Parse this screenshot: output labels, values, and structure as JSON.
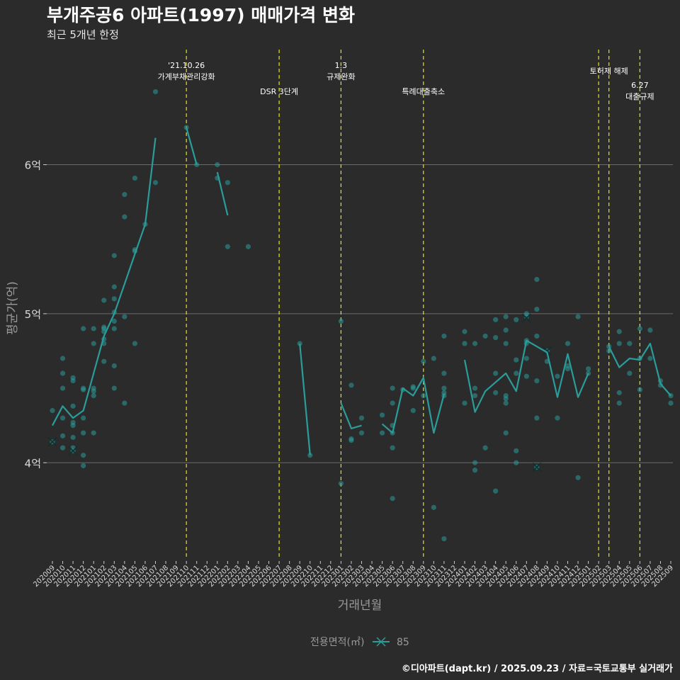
{
  "title": "부개주공6 아파트(1997) 매매가격 변화",
  "subtitle": "최근 5개년 한정",
  "credit": "©디아파트(dapt.kr) / 2025.09.23 / 자료=국토교통부 실거래가",
  "colors": {
    "background": "#2b2b2b",
    "series": "#2a9d9a",
    "event_line": "#e6e600",
    "grid": "#6b6b6b",
    "text": "#ffffff",
    "axis_text": "#9a9a9a"
  },
  "chart_data": {
    "type": "line",
    "xlabel": "거래년월",
    "ylabel": "평균가(억)",
    "ylim": [
      3.35,
      6.82
    ],
    "yticks": [
      {
        "value": 4,
        "label": "4억"
      },
      {
        "value": 5,
        "label": "5억"
      },
      {
        "value": 6,
        "label": "6억"
      }
    ],
    "grid": "horizontal",
    "legend": {
      "title": "전용면적(㎡)",
      "position": "bottom",
      "entries": [
        "85"
      ]
    },
    "x": [
      "202009",
      "202010",
      "202011",
      "202012",
      "202101",
      "202102",
      "202103",
      "202104",
      "202105",
      "202106",
      "202107",
      "202108",
      "202109",
      "202110",
      "202111",
      "202112",
      "202201",
      "202202",
      "202203",
      "202204",
      "202205",
      "202206",
      "202207",
      "202208",
      "202209",
      "202210",
      "202211",
      "202212",
      "202301",
      "202302",
      "202303",
      "202304",
      "202305",
      "202306",
      "202307",
      "202308",
      "202309",
      "202310",
      "202311",
      "202312",
      "202401",
      "202402",
      "202403",
      "202404",
      "202405",
      "202406",
      "202407",
      "202408",
      "202409",
      "202410",
      "202411",
      "202412",
      "202501",
      "202502",
      "202503",
      "202504",
      "202505",
      "202506",
      "202507",
      "202508",
      "202509"
    ],
    "series": [
      {
        "name": "85",
        "values": [
          4.25,
          4.38,
          4.3,
          4.35,
          4.6,
          4.85,
          5.0,
          5.2,
          5.4,
          5.6,
          6.18,
          null,
          null,
          6.25,
          6.0,
          null,
          5.95,
          5.66,
          null,
          null,
          null,
          null,
          null,
          null,
          4.8,
          4.05,
          null,
          null,
          4.4,
          4.23,
          4.25,
          null,
          4.26,
          4.2,
          4.5,
          4.45,
          4.57,
          4.2,
          4.46,
          null,
          4.69,
          4.34,
          4.48,
          4.54,
          4.6,
          4.48,
          4.82,
          4.78,
          4.74,
          4.44,
          4.73,
          4.44,
          4.6,
          null,
          4.78,
          4.64,
          4.7,
          4.69,
          4.8,
          4.53,
          4.45
        ],
        "points": [
          [
            0,
            4.35
          ],
          [
            0,
            4.14
          ],
          [
            1,
            4.1
          ],
          [
            1,
            4.5
          ],
          [
            1,
            4.6
          ],
          [
            1,
            4.7
          ],
          [
            1,
            4.18
          ],
          [
            1,
            4.3
          ],
          [
            2,
            4.25
          ],
          [
            2,
            4.1
          ],
          [
            2,
            4.17
          ],
          [
            2,
            4.08
          ],
          [
            2,
            4.27
          ],
          [
            2,
            4.38
          ],
          [
            2,
            4.55
          ],
          [
            2,
            4.57
          ],
          [
            3,
            4.9
          ],
          [
            3,
            4.5
          ],
          [
            3,
            4.49
          ],
          [
            3,
            4.3
          ],
          [
            3,
            4.2
          ],
          [
            3,
            4.05
          ],
          [
            3,
            3.98
          ],
          [
            4,
            4.45
          ],
          [
            4,
            4.48
          ],
          [
            4,
            4.5
          ],
          [
            4,
            4.9
          ],
          [
            4,
            4.8
          ],
          [
            4,
            4.2
          ],
          [
            5,
            4.8
          ],
          [
            5,
            4.83
          ],
          [
            5,
            4.88
          ],
          [
            5,
            4.91
          ],
          [
            5,
            4.9
          ],
          [
            5,
            5.09
          ],
          [
            5,
            4.68
          ],
          [
            6,
            4.65
          ],
          [
            6,
            4.5
          ],
          [
            6,
            4.9
          ],
          [
            6,
            4.95
          ],
          [
            6,
            5.01
          ],
          [
            6,
            5.1
          ],
          [
            6,
            5.18
          ],
          [
            6,
            5.39
          ],
          [
            7,
            5.8
          ],
          [
            7,
            5.65
          ],
          [
            7,
            4.98
          ],
          [
            7,
            4.4
          ],
          [
            8,
            5.91
          ],
          [
            8,
            5.43
          ],
          [
            8,
            5.42
          ],
          [
            8,
            4.8
          ],
          [
            9,
            5.6
          ],
          [
            10,
            6.49
          ],
          [
            10,
            5.88
          ],
          [
            13,
            6.25
          ],
          [
            14,
            6.0
          ],
          [
            16,
            6.0
          ],
          [
            16,
            5.91
          ],
          [
            17,
            5.88
          ],
          [
            17,
            5.45
          ],
          [
            19,
            5.45
          ],
          [
            24,
            4.8
          ],
          [
            25,
            4.05
          ],
          [
            28,
            4.95
          ],
          [
            28,
            3.86
          ],
          [
            29,
            4.52
          ],
          [
            29,
            4.16
          ],
          [
            29,
            4.15
          ],
          [
            30,
            4.3
          ],
          [
            30,
            4.2
          ],
          [
            32,
            4.2
          ],
          [
            32,
            4.32
          ],
          [
            33,
            4.4
          ],
          [
            33,
            4.25
          ],
          [
            33,
            4.2
          ],
          [
            33,
            4.1
          ],
          [
            33,
            3.76
          ],
          [
            33,
            4.5
          ],
          [
            34,
            4.49
          ],
          [
            35,
            4.5
          ],
          [
            35,
            4.51
          ],
          [
            35,
            4.35
          ],
          [
            36,
            4.68
          ],
          [
            36,
            4.45
          ],
          [
            37,
            4.7
          ],
          [
            37,
            3.7
          ],
          [
            38,
            4.5
          ],
          [
            38,
            4.45
          ],
          [
            38,
            4.6
          ],
          [
            38,
            3.49
          ],
          [
            38,
            4.85
          ],
          [
            38,
            4.47
          ],
          [
            40,
            4.88
          ],
          [
            40,
            4.4
          ],
          [
            40,
            4.8
          ],
          [
            41,
            4.5
          ],
          [
            41,
            4.45
          ],
          [
            41,
            4.8
          ],
          [
            41,
            4.0
          ],
          [
            41,
            3.95
          ],
          [
            42,
            4.1
          ],
          [
            42,
            4.85
          ],
          [
            43,
            4.84
          ],
          [
            43,
            4.96
          ],
          [
            43,
            3.81
          ],
          [
            43,
            4.6
          ],
          [
            43,
            4.47
          ],
          [
            44,
            4.98
          ],
          [
            44,
            4.89
          ],
          [
            44,
            4.8
          ],
          [
            44,
            4.45
          ],
          [
            44,
            4.43
          ],
          [
            44,
            4.4
          ],
          [
            44,
            4.2
          ],
          [
            45,
            4.96
          ],
          [
            45,
            4.69
          ],
          [
            45,
            4.6
          ],
          [
            45,
            4.08
          ],
          [
            45,
            4.0
          ],
          [
            46,
            5.0
          ],
          [
            46,
            4.98
          ],
          [
            46,
            4.82
          ],
          [
            46,
            4.8
          ],
          [
            46,
            4.7
          ],
          [
            46,
            4.58
          ],
          [
            47,
            5.23
          ],
          [
            47,
            5.03
          ],
          [
            47,
            4.85
          ],
          [
            47,
            4.55
          ],
          [
            47,
            4.3
          ],
          [
            47,
            3.97
          ],
          [
            48,
            4.75
          ],
          [
            48,
            4.68
          ],
          [
            49,
            4.58
          ],
          [
            49,
            4.3
          ],
          [
            50,
            4.8
          ],
          [
            50,
            4.63
          ],
          [
            50,
            4.65
          ],
          [
            51,
            4.98
          ],
          [
            51,
            3.9
          ],
          [
            52,
            4.63
          ],
          [
            52,
            4.6
          ],
          [
            54,
            4.78
          ],
          [
            54,
            4.75
          ],
          [
            55,
            4.88
          ],
          [
            55,
            4.8
          ],
          [
            55,
            4.47
          ],
          [
            55,
            4.4
          ],
          [
            56,
            4.8
          ],
          [
            56,
            4.6
          ],
          [
            57,
            4.9
          ],
          [
            57,
            4.7
          ],
          [
            57,
            4.49
          ],
          [
            58,
            4.89
          ],
          [
            58,
            4.7
          ],
          [
            59,
            4.55
          ],
          [
            59,
            4.52
          ],
          [
            60,
            4.45
          ],
          [
            60,
            4.4
          ]
        ],
        "cancelled": [
          [
            0,
            4.14
          ],
          [
            2,
            4.08
          ],
          [
            46,
            4.97
          ],
          [
            47,
            3.97
          ],
          [
            48,
            4.75
          ]
        ]
      }
    ],
    "events": [
      {
        "x": 13,
        "lines": [
          "'21.10.26",
          "가계부채관리강화"
        ],
        "row": 0
      },
      {
        "x": 22,
        "lines": [
          "DSR 3단계"
        ],
        "row": 2
      },
      {
        "x": 28,
        "lines": [
          "1.3",
          "규제완화"
        ],
        "row": 0
      },
      {
        "x": 36,
        "lines": [
          "특례대출축소"
        ],
        "row": 2
      },
      {
        "x": 53,
        "lines": [],
        "row": 1
      },
      {
        "x": 54,
        "lines": [
          "토허제 해제"
        ],
        "row": 1
      },
      {
        "x": 57,
        "lines": [
          "6.27",
          "대출규제"
        ],
        "row": 3
      }
    ]
  }
}
